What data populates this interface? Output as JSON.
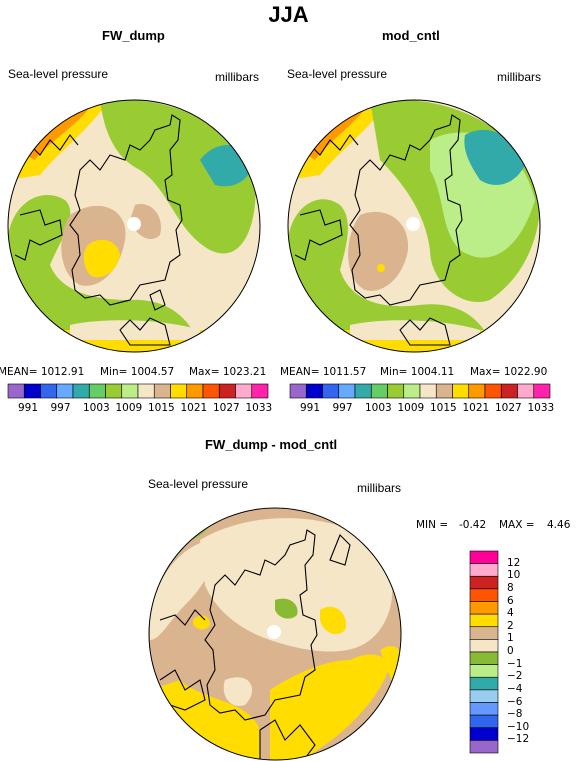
{
  "figure_title": "JJA",
  "panels": [
    {
      "title": "FW_dump",
      "variable": "Sea-level pressure",
      "units": "millibars",
      "stats": {
        "mean": "MEAN= 1012.91",
        "min": "Min= 1004.57",
        "max": "Max= 1023.21"
      }
    },
    {
      "title": "mod_cntl",
      "variable": "Sea-level pressure",
      "units": "millibars",
      "stats": {
        "mean": "MEAN= 1011.57",
        "min": "Min= 1004.11",
        "max": "Max= 1022.90"
      }
    },
    {
      "title": "FW_dump - mod_cntl",
      "variable": "Sea-level pressure",
      "units": "millibars",
      "stats": {
        "min": "MIN =",
        "min_value": "-0.42",
        "max": "MAX =",
        "max_value": "4.46"
      }
    }
  ],
  "colorbar_abs": {
    "colors": [
      "#9966cc",
      "#0000cc",
      "#3366ee",
      "#66aaff",
      "#33aaaa",
      "#66cc66",
      "#99cc33",
      "#bbee88",
      "#f5e6c8",
      "#d9b48f",
      "#ffdd00",
      "#ff9900",
      "#ff5500",
      "#cc2222",
      "#ffaacc",
      "#ff22aa"
    ],
    "labels": [
      "991",
      "997",
      "1003",
      "1009",
      "1015",
      "1021",
      "1027",
      "1033"
    ]
  },
  "colorbar_diff": {
    "colors": [
      "#9966cc",
      "#0000cc",
      "#3366ee",
      "#6699ff",
      "#99ccee",
      "#33aaaa",
      "#bbee88",
      "#88bb33",
      "#f5e6c8",
      "#d9b48f",
      "#ffdd00",
      "#ff9900",
      "#ff5500",
      "#cc2222",
      "#ffaacc",
      "#ff0099"
    ],
    "labels": [
      "12",
      "10",
      "8",
      "6",
      "4",
      "2",
      "1",
      "0",
      "−1",
      "−2",
      "−4",
      "−6",
      "−8",
      "−10",
      "−12"
    ]
  }
}
